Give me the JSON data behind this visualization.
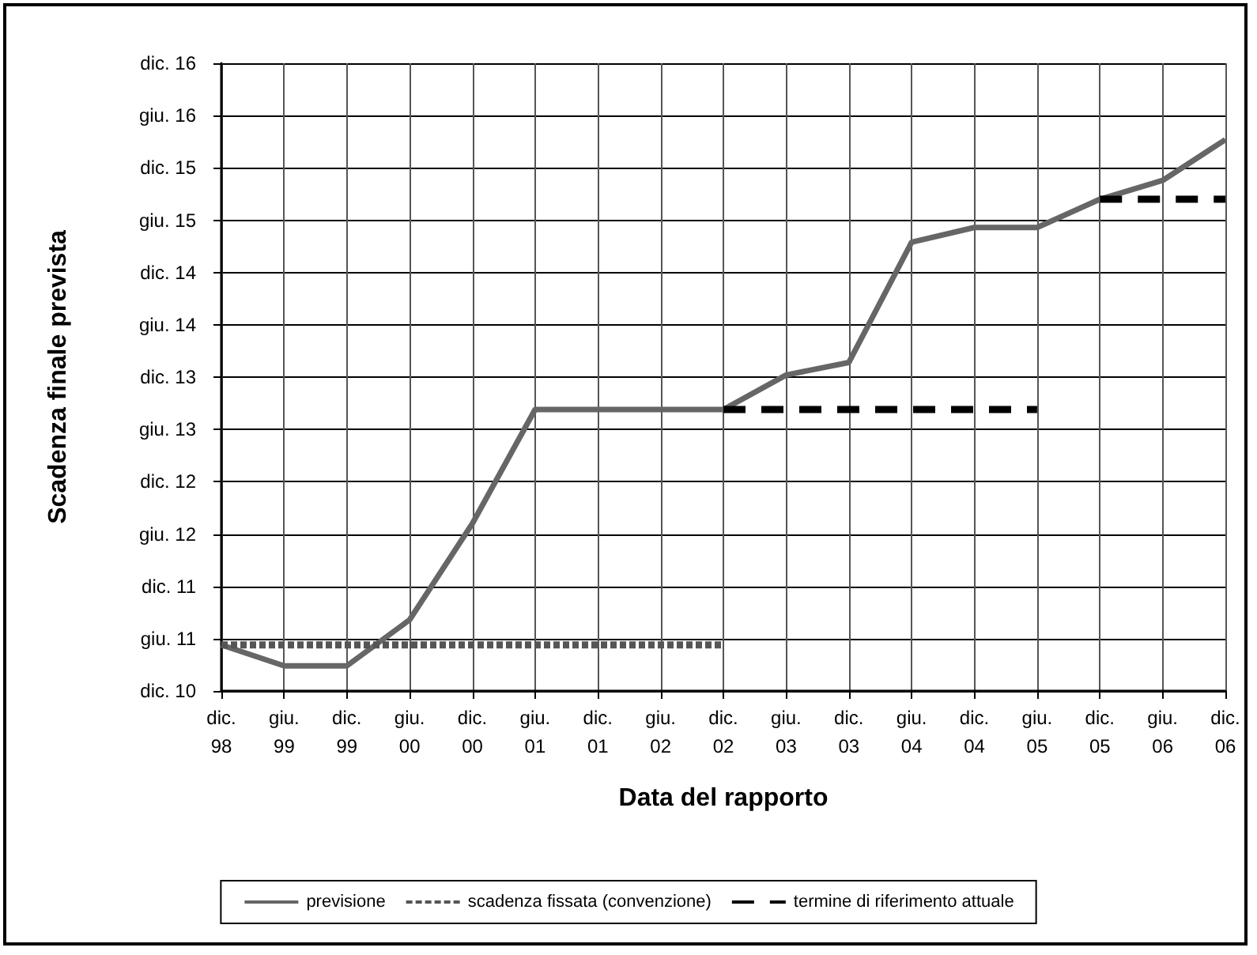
{
  "chart_data": {
    "type": "line",
    "xlabel": "Data del rapporto",
    "ylabel": "Scadenza finale prevista",
    "categories": [
      "dic.\n98",
      "giu.\n99",
      "dic.\n99",
      "giu.\n00",
      "dic.\n00",
      "giu.\n01",
      "dic.\n01",
      "giu.\n02",
      "dic.\n02",
      "giu.\n03",
      "dic.\n03",
      "giu.\n04",
      "dic.\n04",
      "giu.\n05",
      "dic.\n05",
      "giu.\n06",
      "dic.\n06"
    ],
    "series": [
      {
        "name": "previsione",
        "color": "#666666",
        "line_style": "solid",
        "values": [
          10.89,
          10.69,
          10.69,
          11.13,
          12.05,
          13.14,
          13.14,
          13.14,
          13.14,
          13.47,
          13.59,
          14.74,
          14.88,
          14.88,
          15.15,
          15.33,
          15.72
        ]
      },
      {
        "name": "scadenza fissata (convenzione)",
        "color": "#555555",
        "line_style": "dotted",
        "values": [
          10.89,
          10.89,
          10.89,
          10.89,
          10.89,
          10.89,
          10.89,
          10.89,
          10.89,
          null,
          null,
          null,
          null,
          null,
          null,
          null,
          null
        ]
      },
      {
        "name": "termine di riferimento attuale",
        "color": "#000000",
        "line_style": "dashed",
        "values": [
          null,
          null,
          null,
          null,
          null,
          null,
          null,
          null,
          13.14,
          13.14,
          13.14,
          13.14,
          13.14,
          13.14,
          null,
          null,
          null
        ]
      },
      {
        "color": "#000000",
        "line_style": "dashed",
        "values": [
          null,
          null,
          null,
          null,
          null,
          null,
          null,
          null,
          null,
          null,
          null,
          null,
          null,
          null,
          15.15,
          15.15,
          15.15
        ]
      }
    ],
    "ylim": [
      10.45,
      16.45
    ],
    "yticks": [
      {
        "value": 10.45,
        "label": "dic. 10"
      },
      {
        "value": 10.95,
        "label": "giu. 11"
      },
      {
        "value": 11.45,
        "label": "dic. 11"
      },
      {
        "value": 11.95,
        "label": "giu. 12"
      },
      {
        "value": 12.45,
        "label": "dic. 12"
      },
      {
        "value": 12.95,
        "label": "giu. 13"
      },
      {
        "value": 13.45,
        "label": "dic. 13"
      },
      {
        "value": 13.95,
        "label": "giu. 14"
      },
      {
        "value": 14.45,
        "label": "dic. 14"
      },
      {
        "value": 14.95,
        "label": "giu. 15"
      },
      {
        "value": 15.45,
        "label": "dic. 15"
      },
      {
        "value": 15.95,
        "label": "giu. 16"
      },
      {
        "value": 16.45,
        "label": "dic. 16"
      }
    ],
    "grid": true,
    "legend": "bottom",
    "marker": "none"
  }
}
